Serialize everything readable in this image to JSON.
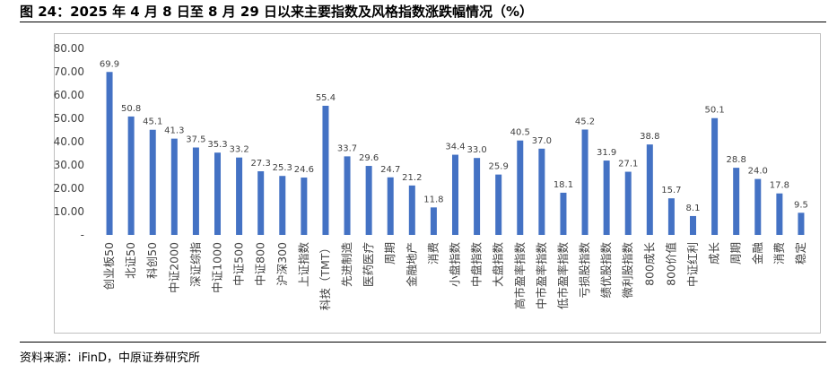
{
  "title": "图 24：2025 年 4 月 8 日至 8 月 29 日以来主要指数及风格指数涨跌幅情况（%）",
  "source": "资料来源：iFinD，中原证券研究所",
  "colors": {
    "bar": "#4472C4",
    "axis": "#bfbfbf"
  },
  "chart_data": {
    "type": "bar",
    "title": "",
    "xlabel": "",
    "ylabel": "",
    "ylim": [
      0,
      80
    ],
    "yticks": [
      "-",
      "10.00",
      "20.00",
      "30.00",
      "40.00",
      "50.00",
      "60.00",
      "70.00",
      "80.00"
    ],
    "grid": false,
    "legend": "none",
    "categories": [
      "创业板50",
      "北证50",
      "科创50",
      "中证2000",
      "深证综指",
      "中证1000",
      "中证500",
      "中证800",
      "沪深300",
      "上证指数",
      "科技（TMT）",
      "先进制造",
      "医药医疗",
      "周期",
      "金融地产",
      "消费",
      "小盘指数",
      "中盘指数",
      "大盘指数",
      "高市盈率指数",
      "中市盈率指数",
      "低市盈率指数",
      "亏损股指数",
      "绩优股指数",
      "微利股指数",
      "800成长",
      "800价值",
      "中证红利",
      "成长",
      "周期",
      "金融",
      "消费",
      "稳定"
    ],
    "values": [
      69.9,
      50.8,
      45.1,
      41.3,
      37.5,
      35.3,
      33.2,
      27.3,
      25.3,
      24.6,
      55.4,
      33.7,
      29.6,
      24.7,
      21.2,
      11.8,
      34.4,
      33.0,
      25.9,
      40.5,
      37.0,
      18.1,
      45.2,
      31.9,
      27.1,
      38.8,
      15.7,
      8.1,
      50.1,
      28.8,
      24.0,
      17.8,
      9.5
    ],
    "value_labels": [
      "69.9",
      "50.8",
      "45.1",
      "41.3",
      "37.5",
      "35.3",
      "33.2",
      "27.3",
      "25.3",
      "24.6",
      "55.4",
      "33.7",
      "29.6",
      "24.7",
      "21.2",
      "11.8",
      "34.4",
      "33.0",
      "25.9",
      "40.5",
      "37.0",
      "18.1",
      "45.2",
      "31.9",
      "27.1",
      "38.8",
      "15.7",
      "8.1",
      "50.1",
      "28.8",
      "24.0",
      "17.8",
      "9.5"
    ]
  }
}
